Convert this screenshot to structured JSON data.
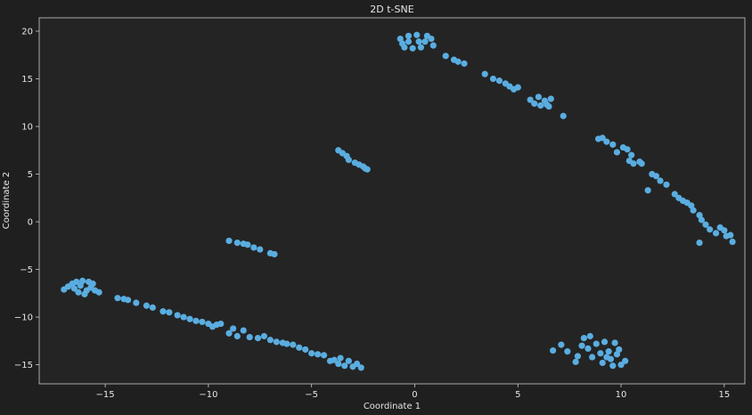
{
  "colors": {
    "background": "#1f1f1f",
    "axes": "#242424",
    "point": "#5aade0",
    "text": "#e6e6e6",
    "spine": "#cccccc"
  },
  "chart_data": {
    "type": "scatter",
    "title": "2D t-SNE",
    "xlabel": "Coordinate 1",
    "ylabel": "Coordinate 2",
    "xlim": [
      -18.2,
      16.0
    ],
    "ylim": [
      -17.0,
      21.4
    ],
    "xticks": [
      -15,
      -10,
      -5,
      0,
      5,
      10,
      15
    ],
    "yticks": [
      -15,
      -10,
      -5,
      0,
      5,
      10,
      15,
      20
    ],
    "grid": false,
    "series": [
      {
        "points": [
          [
            -0.7,
            19.2
          ],
          [
            -0.6,
            18.7
          ],
          [
            -0.5,
            18.3
          ],
          [
            -0.3,
            19.5
          ],
          [
            -0.1,
            18.2
          ],
          [
            0.1,
            19.6
          ],
          [
            0.3,
            18.3
          ],
          [
            0.5,
            18.9
          ],
          [
            0.6,
            19.5
          ],
          [
            0.8,
            19.2
          ],
          [
            0.9,
            18.5
          ],
          [
            0.2,
            18.9
          ],
          [
            -0.3,
            18.9
          ],
          [
            1.5,
            17.4
          ],
          [
            1.9,
            17.0
          ],
          [
            2.1,
            16.8
          ],
          [
            2.4,
            16.6
          ],
          [
            3.4,
            15.5
          ],
          [
            3.8,
            15.0
          ],
          [
            4.1,
            14.8
          ],
          [
            4.4,
            14.5
          ],
          [
            4.6,
            14.2
          ],
          [
            4.8,
            13.9
          ],
          [
            5.0,
            14.1
          ],
          [
            5.6,
            12.8
          ],
          [
            5.8,
            12.4
          ],
          [
            6.0,
            13.1
          ],
          [
            6.1,
            12.2
          ],
          [
            6.3,
            12.7
          ],
          [
            6.4,
            12.3
          ],
          [
            6.6,
            12.9
          ],
          [
            6.5,
            12.1
          ],
          [
            7.2,
            11.1
          ],
          [
            8.9,
            8.7
          ],
          [
            9.1,
            8.8
          ],
          [
            9.3,
            8.4
          ],
          [
            9.6,
            8.1
          ],
          [
            9.8,
            7.3
          ],
          [
            10.1,
            7.8
          ],
          [
            10.3,
            7.6
          ],
          [
            10.5,
            7.0
          ],
          [
            10.4,
            6.4
          ],
          [
            10.6,
            6.1
          ],
          [
            10.9,
            6.3
          ],
          [
            11.0,
            6.1
          ],
          [
            11.3,
            3.3
          ],
          [
            11.5,
            5.0
          ],
          [
            11.7,
            4.8
          ],
          [
            11.9,
            4.3
          ],
          [
            12.2,
            3.9
          ],
          [
            12.6,
            2.9
          ],
          [
            12.8,
            2.5
          ],
          [
            13.0,
            2.2
          ],
          [
            13.2,
            2.0
          ],
          [
            13.4,
            1.7
          ],
          [
            13.5,
            1.2
          ],
          [
            13.8,
            0.7
          ],
          [
            13.9,
            0.2
          ],
          [
            14.1,
            -0.3
          ],
          [
            14.3,
            -0.8
          ],
          [
            14.6,
            -1.2
          ],
          [
            14.8,
            -0.6
          ],
          [
            15.0,
            -0.9
          ],
          [
            15.1,
            -1.5
          ],
          [
            15.3,
            -1.4
          ],
          [
            15.4,
            -2.1
          ],
          [
            13.8,
            -2.2
          ],
          [
            -3.7,
            7.5
          ],
          [
            -3.5,
            7.2
          ],
          [
            -3.3,
            6.9
          ],
          [
            -3.2,
            6.5
          ],
          [
            -2.9,
            6.2
          ],
          [
            -2.7,
            6.0
          ],
          [
            -2.5,
            5.8
          ],
          [
            -2.4,
            5.6
          ],
          [
            -2.3,
            5.5
          ],
          [
            -9.0,
            -2.0
          ],
          [
            -8.6,
            -2.2
          ],
          [
            -8.3,
            -2.3
          ],
          [
            -8.1,
            -2.4
          ],
          [
            -7.8,
            -2.7
          ],
          [
            -7.5,
            -2.9
          ],
          [
            -7.0,
            -3.3
          ],
          [
            -6.8,
            -3.4
          ],
          [
            -17.0,
            -7.1
          ],
          [
            -16.8,
            -6.8
          ],
          [
            -16.6,
            -6.5
          ],
          [
            -16.4,
            -6.3
          ],
          [
            -16.3,
            -7.4
          ],
          [
            -16.1,
            -6.2
          ],
          [
            -16.0,
            -7.6
          ],
          [
            -15.8,
            -6.3
          ],
          [
            -15.7,
            -6.9
          ],
          [
            -15.6,
            -6.5
          ],
          [
            -15.5,
            -7.2
          ],
          [
            -16.5,
            -7.0
          ],
          [
            -16.2,
            -6.7
          ],
          [
            -15.9,
            -7.2
          ],
          [
            -15.3,
            -7.4
          ],
          [
            -14.4,
            -8.0
          ],
          [
            -14.1,
            -8.1
          ],
          [
            -13.9,
            -8.2
          ],
          [
            -13.5,
            -8.5
          ],
          [
            -13.0,
            -8.8
          ],
          [
            -12.7,
            -9.0
          ],
          [
            -12.2,
            -9.4
          ],
          [
            -11.9,
            -9.5
          ],
          [
            -11.5,
            -9.8
          ],
          [
            -11.2,
            -10.0
          ],
          [
            -10.9,
            -10.2
          ],
          [
            -10.6,
            -10.4
          ],
          [
            -10.3,
            -10.5
          ],
          [
            -10.0,
            -10.7
          ],
          [
            -9.8,
            -11.0
          ],
          [
            -9.6,
            -10.8
          ],
          [
            -9.4,
            -10.7
          ],
          [
            -9.0,
            -11.7
          ],
          [
            -8.8,
            -11.2
          ],
          [
            -8.6,
            -12.0
          ],
          [
            -8.3,
            -11.4
          ],
          [
            -8.0,
            -12.1
          ],
          [
            -7.6,
            -12.2
          ],
          [
            -7.3,
            -12.0
          ],
          [
            -7.0,
            -12.4
          ],
          [
            -6.7,
            -12.6
          ],
          [
            -6.4,
            -12.7
          ],
          [
            -6.2,
            -12.8
          ],
          [
            -5.9,
            -12.9
          ],
          [
            -5.6,
            -13.2
          ],
          [
            -5.3,
            -13.4
          ],
          [
            -5.0,
            -13.8
          ],
          [
            -4.7,
            -13.9
          ],
          [
            -4.4,
            -14.0
          ],
          [
            -4.1,
            -14.6
          ],
          [
            -3.9,
            -14.5
          ],
          [
            -3.6,
            -14.3
          ],
          [
            -3.4,
            -15.1
          ],
          [
            -3.2,
            -14.6
          ],
          [
            -3.0,
            -15.2
          ],
          [
            -2.8,
            -14.9
          ],
          [
            -2.6,
            -15.3
          ],
          [
            -3.7,
            -14.9
          ],
          [
            6.7,
            -13.5
          ],
          [
            7.1,
            -12.9
          ],
          [
            7.4,
            -13.6
          ],
          [
            7.9,
            -14.1
          ],
          [
            7.8,
            -14.7
          ],
          [
            8.2,
            -12.2
          ],
          [
            8.4,
            -13.3
          ],
          [
            8.5,
            -12.0
          ],
          [
            8.6,
            -14.2
          ],
          [
            8.8,
            -12.8
          ],
          [
            9.0,
            -13.8
          ],
          [
            9.1,
            -14.8
          ],
          [
            9.2,
            -12.6
          ],
          [
            9.4,
            -13.6
          ],
          [
            9.5,
            -14.4
          ],
          [
            9.6,
            -15.1
          ],
          [
            9.7,
            -12.7
          ],
          [
            9.8,
            -13.9
          ],
          [
            10.0,
            -15.0
          ],
          [
            10.2,
            -14.6
          ],
          [
            9.3,
            -14.2
          ],
          [
            8.1,
            -13.0
          ],
          [
            9.9,
            -13.4
          ]
        ]
      }
    ]
  }
}
